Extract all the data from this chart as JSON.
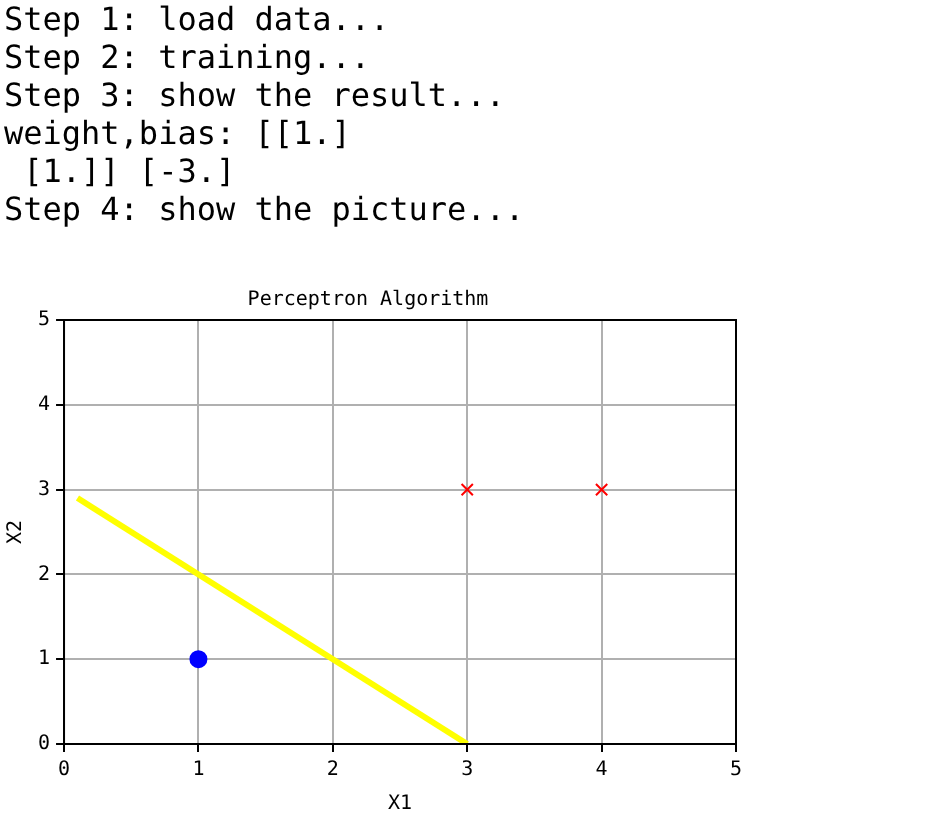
{
  "chart_data": {
    "type": "scatter",
    "title": "Perceptron Algorithm",
    "xlabel": "X1",
    "ylabel": "X2",
    "annotations": [
      "Step 1: load data...",
      "Step 2: training...",
      "Step 3: show the result...",
      "weight,bias: [[1.]",
      " [1.]] [-3.]",
      "Step 4: show the picture..."
    ],
    "series": [
      {
        "type": "scatter",
        "color": "#0000ff",
        "marker": "circle",
        "x": [
          1
        ],
        "values": [
          1
        ]
      },
      {
        "type": "scatter",
        "color": "#ff0000",
        "marker": "cross",
        "x": [
          3,
          4
        ],
        "values": [
          3,
          3
        ]
      },
      {
        "type": "line",
        "color": "#ffff00",
        "marker": "none",
        "line_style": "solid",
        "x": [
          0.1,
          3
        ],
        "values": [
          2.9,
          0
        ]
      }
    ],
    "xlim": [
      0,
      5
    ],
    "ylim": [
      0,
      5
    ],
    "xticks": [
      0,
      1,
      2,
      3,
      4,
      5
    ],
    "yticks": [
      0,
      1,
      2,
      3,
      4,
      5
    ],
    "grid": true,
    "legend": false
  }
}
